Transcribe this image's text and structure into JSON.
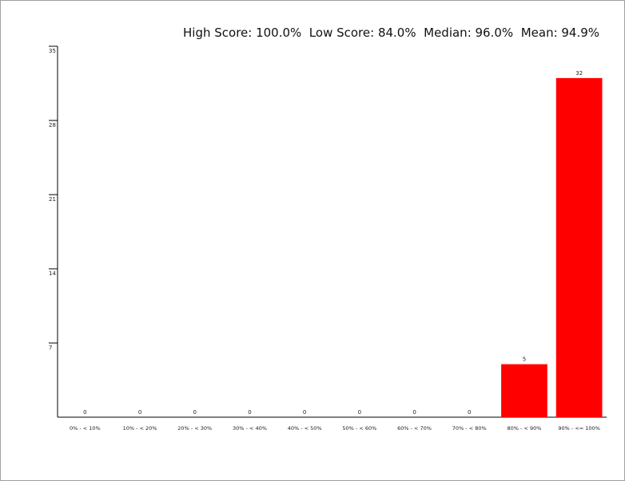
{
  "header": {
    "stats_line": "High Score: 100.0%  Low Score: 84.0%  Median: 96.0%  Mean: 94.9%"
  },
  "colors": {
    "bar": "#ff0000",
    "axis": "#000000"
  },
  "chart_data": {
    "type": "bar",
    "title": "High Score: 100.0%  Low Score: 84.0%  Median: 96.0%  Mean: 94.9%",
    "xlabel": "",
    "ylabel": "",
    "categories": [
      "0% - < 10%",
      "10% - < 20%",
      "20% - < 30%",
      "30% - < 40%",
      "40% - < 50%",
      "50% - < 60%",
      "60% - < 70%",
      "70% - < 80%",
      "80% - < 90%",
      "90% - <= 100%"
    ],
    "values": [
      0,
      0,
      0,
      0,
      0,
      0,
      0,
      0,
      5,
      32
    ],
    "data_labels": [
      "0",
      "0",
      "0",
      "0",
      "0",
      "0",
      "0",
      "0",
      "5",
      "32"
    ],
    "ylim": [
      0,
      35
    ],
    "yticks": [
      7,
      14,
      21,
      28,
      35
    ],
    "ytick_labels": [
      "7",
      "14",
      "21",
      "28",
      "35"
    ],
    "grid": false,
    "legend": "none"
  }
}
